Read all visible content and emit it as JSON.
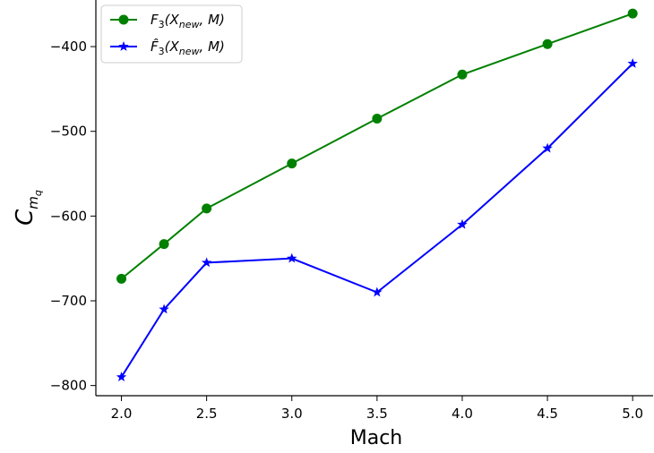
{
  "chart_data": {
    "type": "line",
    "title": "",
    "xlabel": "Mach",
    "ylabel": "C_{m_q}",
    "x": [
      2.0,
      2.25,
      2.5,
      3.0,
      3.5,
      4.0,
      4.5,
      5.0
    ],
    "xlim": [
      1.85,
      5.12
    ],
    "ylim": [
      -812,
      -345
    ],
    "xticks": [
      "2.0",
      "2.5",
      "3.0",
      "3.5",
      "4.0",
      "4.5",
      "5.0"
    ],
    "yticks": [
      "−400",
      "−500",
      "−600",
      "−700",
      "−800"
    ],
    "grid": false,
    "legend_position": "top-left",
    "series": [
      {
        "name": "F3(Xnew, M)",
        "color": "#008000",
        "marker": "circle",
        "values": [
          -674,
          -633,
          -591,
          -538,
          -485,
          -433,
          -397,
          -361
        ]
      },
      {
        "name": "F̂3(Xnew, M)",
        "color": "#0000ff",
        "marker": "star",
        "values": [
          -790,
          -710,
          -655,
          -650,
          -690,
          -610,
          -520,
          -420
        ]
      }
    ]
  }
}
